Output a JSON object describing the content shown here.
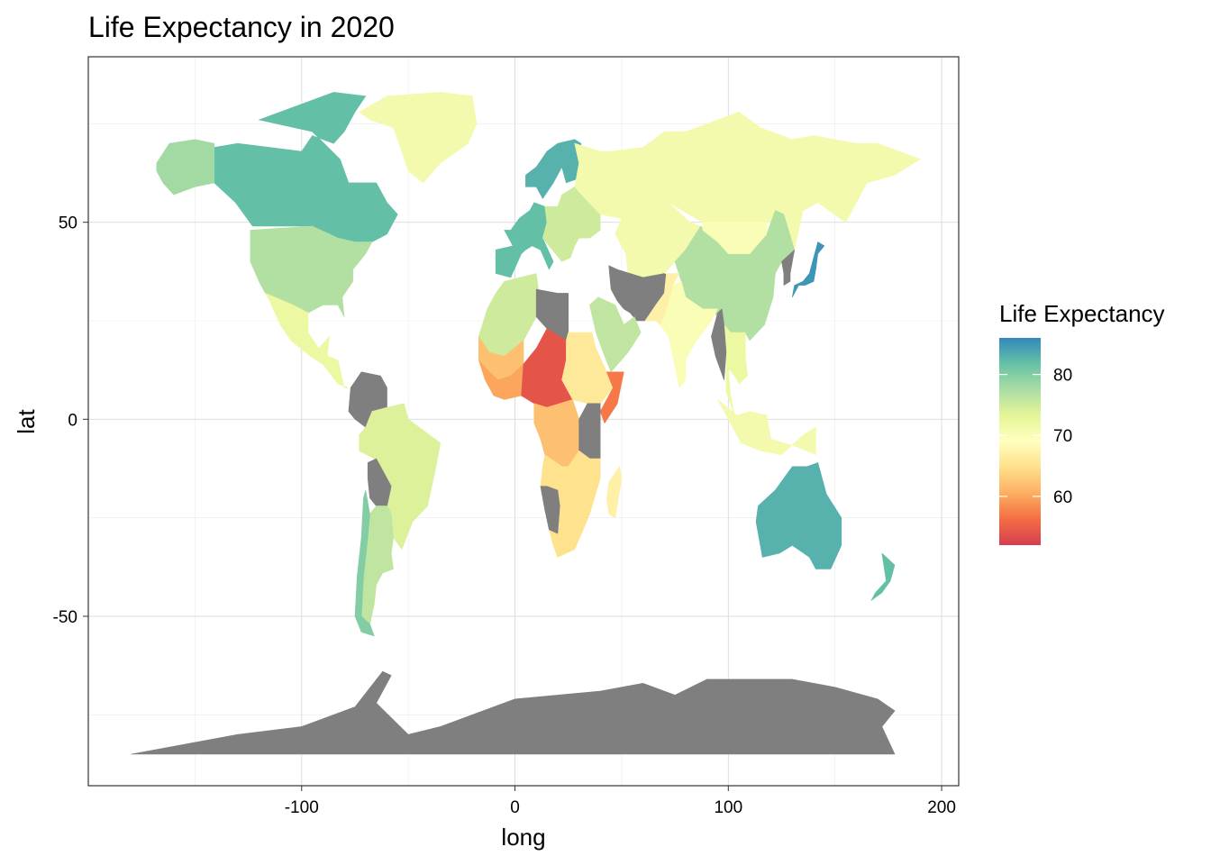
{
  "chart_data": {
    "type": "choropleth-map",
    "title": "Life Expectancy in 2020",
    "xlabel": "long",
    "ylabel": "lat",
    "xlim": [
      -200,
      208
    ],
    "ylim": [
      -93,
      92
    ],
    "x_ticks": [
      -100,
      0,
      100,
      200
    ],
    "y_ticks": [
      50,
      0,
      -50
    ],
    "x_tick_labels": [
      "-100",
      "0",
      "100",
      "200"
    ],
    "y_tick_labels": [
      "50",
      "0",
      "-50"
    ],
    "grid": true,
    "legend": {
      "title": "Life Expectancy",
      "placement": "right",
      "scale_min": 52,
      "scale_max": 86,
      "breaks": [
        80,
        70,
        60
      ],
      "break_labels": [
        "80",
        "70",
        "60"
      ],
      "palette": [
        "#D53E4F",
        "#F46D43",
        "#FDAE61",
        "#FEE08B",
        "#FFFFBF",
        "#E6F598",
        "#ABDDA4",
        "#66C2A5",
        "#3288BD"
      ],
      "missing_color": "#7F7F7F"
    },
    "regions": [
      {
        "name": "Canada",
        "value": 82
      },
      {
        "name": "Alaska",
        "value": 78
      },
      {
        "name": "USA",
        "value": 77
      },
      {
        "name": "Mexico / Central America",
        "value": 72
      },
      {
        "name": "Greenland",
        "value": 71
      },
      {
        "name": "Colombia / Venezuela",
        "value": null
      },
      {
        "name": "Brazil",
        "value": 74
      },
      {
        "name": "Bolivia",
        "value": null
      },
      {
        "name": "Argentina",
        "value": 76
      },
      {
        "name": "Chile",
        "value": 80
      },
      {
        "name": "Scandinavia",
        "value": 83
      },
      {
        "name": "Western Europe",
        "value": 82
      },
      {
        "name": "Eastern Europe",
        "value": 75
      },
      {
        "name": "Russia",
        "value": 71
      },
      {
        "name": "Kazakhstan / Central Asia",
        "value": 71
      },
      {
        "name": "China",
        "value": 77
      },
      {
        "name": "Mongolia",
        "value": 70
      },
      {
        "name": "Japan",
        "value": 85
      },
      {
        "name": "Korea",
        "value": null
      },
      {
        "name": "India",
        "value": 70
      },
      {
        "name": "Iran / Afghanistan",
        "value": null
      },
      {
        "name": "Pakistan",
        "value": 67
      },
      {
        "name": "Southeast Asia",
        "value": 72
      },
      {
        "name": "Myanmar",
        "value": null
      },
      {
        "name": "Indonesia",
        "value": 71
      },
      {
        "name": "Australia",
        "value": 83
      },
      {
        "name": "New Zealand",
        "value": 82
      },
      {
        "name": "North Africa",
        "value": 75
      },
      {
        "name": "Libya",
        "value": null
      },
      {
        "name": "Arabian Peninsula",
        "value": 76
      },
      {
        "name": "Sahel West",
        "value": 62
      },
      {
        "name": "Gulf of Guinea",
        "value": 60
      },
      {
        "name": "Nigeria / Chad / CAR",
        "value": 54
      },
      {
        "name": "Sudan / Ethiopia",
        "value": 66
      },
      {
        "name": "Somalia",
        "value": 57
      },
      {
        "name": "Congo basin",
        "value": 62
      },
      {
        "name": "East Africa",
        "value": null
      },
      {
        "name": "Southern Africa",
        "value": 65
      },
      {
        "name": "Namibia",
        "value": null
      },
      {
        "name": "Madagascar",
        "value": 67
      },
      {
        "name": "Antarctica",
        "value": null
      }
    ]
  }
}
